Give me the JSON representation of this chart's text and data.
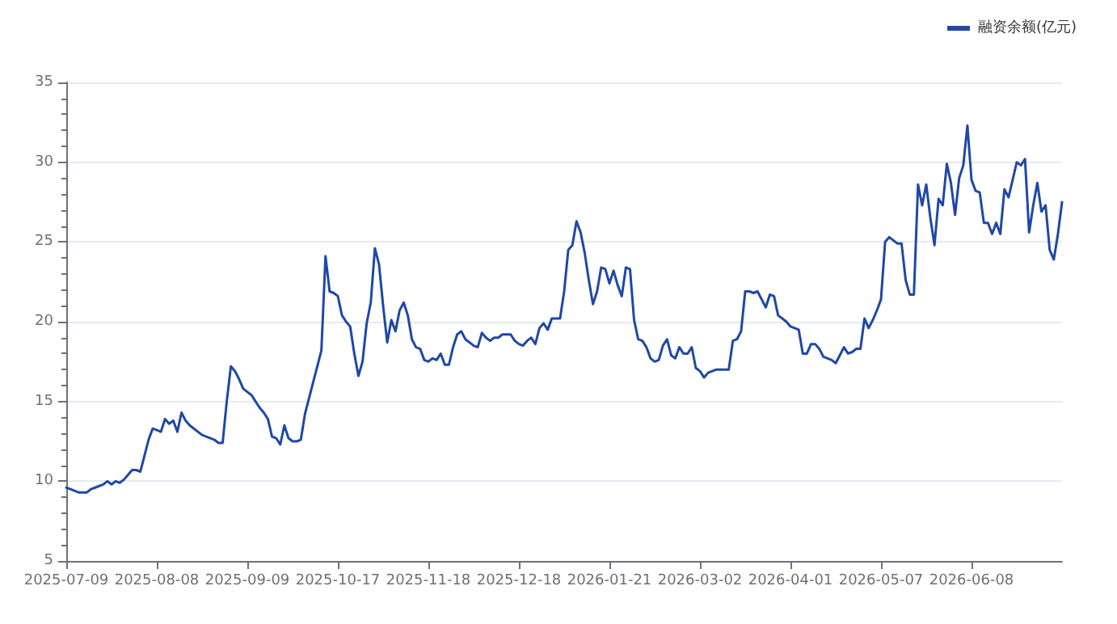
{
  "chart_data": {
    "type": "line",
    "categories": [
      "2025-07-09",
      null,
      null,
      null,
      null,
      null,
      null,
      null,
      null,
      null,
      null,
      null,
      null,
      null,
      null,
      null,
      null,
      null,
      null,
      null,
      null,
      null,
      "2025-08-08",
      null,
      null,
      null,
      null,
      null,
      null,
      null,
      null,
      null,
      null,
      null,
      null,
      null,
      null,
      null,
      null,
      null,
      null,
      null,
      null,
      null,
      "2025-09-09",
      null,
      null,
      null,
      null,
      null,
      null,
      null,
      null,
      null,
      null,
      null,
      null,
      null,
      null,
      null,
      null,
      null,
      null,
      null,
      null,
      null,
      "2025-10-17",
      null,
      null,
      null,
      null,
      null,
      null,
      null,
      null,
      null,
      null,
      null,
      null,
      null,
      null,
      null,
      null,
      null,
      null,
      null,
      null,
      null,
      "2025-11-18",
      null,
      null,
      null,
      null,
      null,
      null,
      null,
      null,
      null,
      null,
      null,
      null,
      null,
      null,
      null,
      null,
      null,
      null,
      null,
      null,
      null,
      "2025-12-18",
      null,
      null,
      null,
      null,
      null,
      null,
      null,
      null,
      null,
      null,
      null,
      null,
      null,
      null,
      null,
      null,
      null,
      null,
      null,
      null,
      null,
      "2026-01-21",
      null,
      null,
      null,
      null,
      null,
      null,
      null,
      null,
      null,
      null,
      null,
      null,
      null,
      null,
      null,
      null,
      null,
      null,
      null,
      null,
      null,
      "2026-03-02",
      null,
      null,
      null,
      null,
      null,
      null,
      null,
      null,
      null,
      null,
      null,
      null,
      null,
      null,
      null,
      null,
      null,
      null,
      null,
      null,
      null,
      "2026-04-01",
      null,
      null,
      null,
      null,
      null,
      null,
      null,
      null,
      null,
      null,
      null,
      null,
      null,
      null,
      null,
      null,
      null,
      null,
      null,
      null,
      null,
      "2026-05-07",
      null,
      null,
      null,
      null,
      null,
      null,
      null,
      null,
      null,
      null,
      null,
      null,
      null,
      null,
      null,
      null,
      null,
      null,
      null,
      null,
      null,
      "2026-06-08",
      null,
      null,
      null,
      null,
      null,
      null,
      null,
      null,
      null,
      null,
      null,
      null,
      null,
      null,
      null,
      null,
      null,
      null,
      null,
      null,
      null,
      null
    ],
    "series": [
      {
        "name": "融资余额(亿元)",
        "color": "#1f48a6",
        "values": [
          9.6,
          9.5,
          9.4,
          9.3,
          9.3,
          9.3,
          9.5,
          9.6,
          9.7,
          9.8,
          10.0,
          9.8,
          10.0,
          9.9,
          10.1,
          10.4,
          10.7,
          10.7,
          10.6,
          11.6,
          12.6,
          13.3,
          13.2,
          13.1,
          13.9,
          13.6,
          13.8,
          13.1,
          14.3,
          13.8,
          13.5,
          13.3,
          13.1,
          12.9,
          12.8,
          12.7,
          12.6,
          12.4,
          12.4,
          15.0,
          17.2,
          16.9,
          16.4,
          15.8,
          15.6,
          15.4,
          15.0,
          14.6,
          14.3,
          13.9,
          12.8,
          12.7,
          12.3,
          13.5,
          12.7,
          12.5,
          12.5,
          12.6,
          14.2,
          15.2,
          16.2,
          17.2,
          18.2,
          24.1,
          21.9,
          21.8,
          21.6,
          20.4,
          20.0,
          19.7,
          18.0,
          16.6,
          17.5,
          19.9,
          21.2,
          24.6,
          23.6,
          21.0,
          18.7,
          20.1,
          19.4,
          20.7,
          21.2,
          20.4,
          18.9,
          18.4,
          18.3,
          17.6,
          17.5,
          17.7,
          17.6,
          18.0,
          17.3,
          17.3,
          18.4,
          19.2,
          19.4,
          18.9,
          18.7,
          18.5,
          18.4,
          19.3,
          19.0,
          18.8,
          19.0,
          19.0,
          19.2,
          19.2,
          19.2,
          18.8,
          18.6,
          18.5,
          18.8,
          19.0,
          18.6,
          19.6,
          19.9,
          19.5,
          20.2,
          20.2,
          20.2,
          21.9,
          24.5,
          24.8,
          26.3,
          25.6,
          24.3,
          22.6,
          21.1,
          21.9,
          23.4,
          23.3,
          22.4,
          23.2,
          22.3,
          21.6,
          23.4,
          23.3,
          20.1,
          18.9,
          18.8,
          18.4,
          17.7,
          17.5,
          17.6,
          18.5,
          18.9,
          17.9,
          17.7,
          18.4,
          18.0,
          18.0,
          18.4,
          17.1,
          16.9,
          16.5,
          16.8,
          16.9,
          17.0,
          17.0,
          17.0,
          17.0,
          18.8,
          18.9,
          19.4,
          21.9,
          21.9,
          21.8,
          21.9,
          21.4,
          20.9,
          21.7,
          21.6,
          20.4,
          20.2,
          20.0,
          19.7,
          19.6,
          19.5,
          18.0,
          18.0,
          18.6,
          18.6,
          18.3,
          17.8,
          17.7,
          17.6,
          17.4,
          17.9,
          18.4,
          18.0,
          18.1,
          18.3,
          18.3,
          20.2,
          19.6,
          20.1,
          20.7,
          21.4,
          25.0,
          25.3,
          25.1,
          24.9,
          24.9,
          22.6,
          21.7,
          21.7,
          28.6,
          27.3,
          28.6,
          26.5,
          24.8,
          27.7,
          27.3,
          29.9,
          28.7,
          26.7,
          29.0,
          29.8,
          32.3,
          28.9,
          28.2,
          28.1,
          26.2,
          26.2,
          25.5,
          26.2,
          25.5,
          28.3,
          27.8,
          28.9,
          30.0,
          29.8,
          30.2,
          25.6,
          27.3,
          28.7,
          26.9,
          27.3,
          24.5,
          23.9,
          25.5,
          27.5
        ]
      }
    ],
    "ylim": [
      5,
      35
    ],
    "yticks": [
      5,
      10,
      15,
      20,
      25,
      30,
      35
    ],
    "grid": "y",
    "legend": "top right",
    "marker": "none",
    "line_style": "solid"
  }
}
